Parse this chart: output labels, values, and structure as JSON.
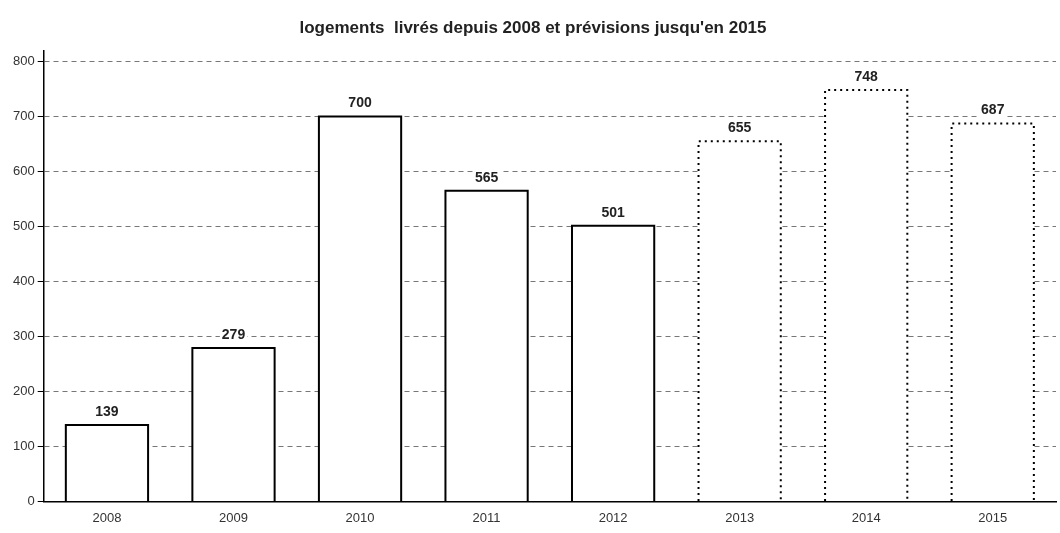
{
  "chart_data": {
    "type": "bar",
    "title": "logements  livrés depuis 2008 et prévisions jusqu'en 2015",
    "categories": [
      "2008",
      "2009",
      "2010",
      "2011",
      "2012",
      "2013",
      "2014",
      "2015"
    ],
    "stacked": true,
    "series": [
      {
        "color": "#ffffff",
        "line_style": "solid",
        "values": [
          139,
          279,
          700,
          565,
          501,
          null,
          null,
          null
        ]
      },
      {
        "color": "#ffffff",
        "line_style": "dotted",
        "values": [
          null,
          null,
          null,
          null,
          null,
          655,
          748,
          687
        ]
      }
    ],
    "ylim": [
      0,
      820
    ],
    "yticks": [
      0,
      100,
      200,
      300,
      400,
      500,
      600,
      700,
      800
    ],
    "grid": "y",
    "data_labels": true
  }
}
